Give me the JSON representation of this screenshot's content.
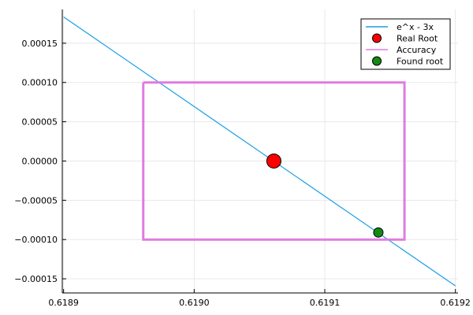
{
  "chart_data": {
    "type": "line",
    "title": "",
    "xlabel": "",
    "ylabel": "",
    "xlim": [
      0.618899,
      0.619202
    ],
    "ylim": [
      -0.000168,
      0.000193
    ],
    "grid": true,
    "legend_position": "top-right",
    "x_ticks": [
      {
        "value": 0.6189,
        "label": "0.6189"
      },
      {
        "value": 0.619,
        "label": "0.6190"
      },
      {
        "value": 0.6191,
        "label": "0.6191"
      },
      {
        "value": 0.6192,
        "label": "0.6192"
      }
    ],
    "y_ticks": [
      {
        "value": 0.00015,
        "label": "0.00015"
      },
      {
        "value": 0.0001,
        "label": "0.00010"
      },
      {
        "value": 5e-05,
        "label": "0.00005"
      },
      {
        "value": 0.0,
        "label": "0.00000"
      },
      {
        "value": -5e-05,
        "label": "−0.00005"
      },
      {
        "value": -0.0001,
        "label": "−0.00010"
      },
      {
        "value": -0.00015,
        "label": "−0.00015"
      }
    ],
    "series": [
      {
        "name": "e^x - 3x",
        "kind": "line",
        "color": "#1a9ee6",
        "x": [
          0.6189,
          0.6192
        ],
        "y": [
          0.0001835,
          -0.000159
        ]
      },
      {
        "name": "Real Root",
        "kind": "scatter",
        "color": "#ff0000",
        "x": [
          0.619061
        ],
        "y": [
          0.0
        ]
      },
      {
        "name": "Accuracy",
        "kind": "line",
        "color": "#e07be0",
        "x": [
          0.618961,
          0.619161,
          0.619161,
          0.618961,
          0.618961
        ],
        "y": [
          0.0001,
          0.0001,
          -0.0001,
          -0.0001,
          0.0001
        ]
      },
      {
        "name": "Found root",
        "kind": "scatter",
        "color": "#138a13",
        "x": [
          0.619141
        ],
        "y": [
          -9.1e-05
        ]
      }
    ]
  }
}
